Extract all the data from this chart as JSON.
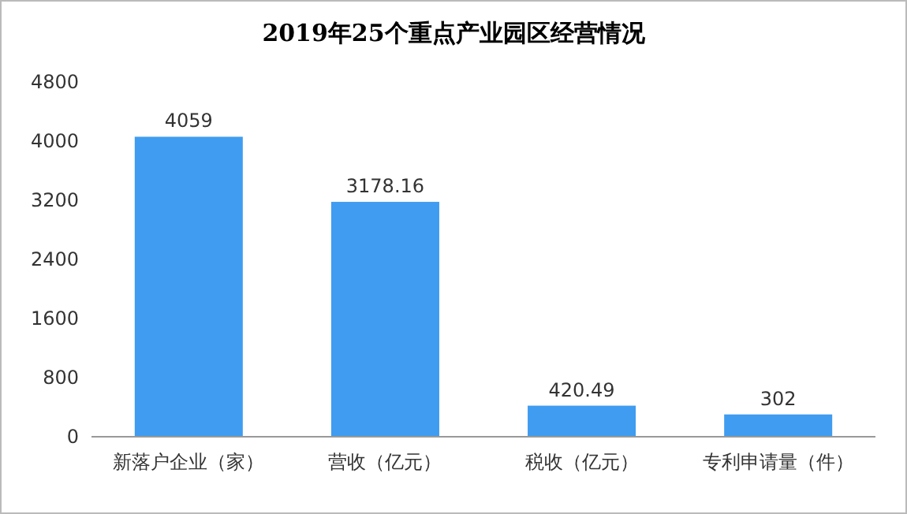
{
  "chart_data": {
    "type": "bar",
    "title": "2019年25个重点产业园区经营情况",
    "categories": [
      "新落户企业（家）",
      "营收（亿元）",
      "税收（亿元）",
      "专利申请量（件）"
    ],
    "values": [
      4059,
      3178.16,
      420.49,
      302
    ],
    "value_labels": [
      "4059",
      "3178.16",
      "420.49",
      "302"
    ],
    "color": "#3f9cf0",
    "ylim": [
      0,
      4800
    ],
    "yticks": [
      0,
      800,
      1600,
      2400,
      3200,
      4000,
      4800
    ],
    "grid": false
  }
}
